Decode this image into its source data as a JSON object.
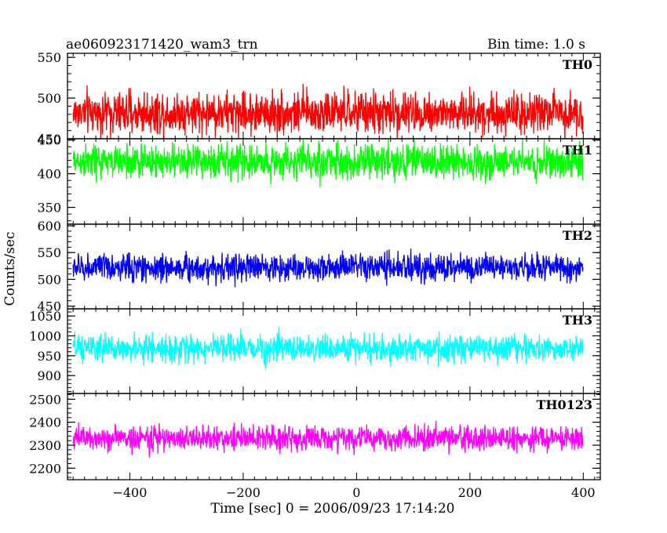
{
  "header": {
    "title": "ae060923171420_wam3_trn",
    "bin_time": "Bin time: 1.0 s"
  },
  "chart_data": {
    "type": "line",
    "xlabel": "Time [sec] 0 = 2006/09/23 17:14:20",
    "ylabel": "Counts/sec",
    "xlim": [
      -510,
      430
    ],
    "x_ticks": [
      -400,
      -200,
      0,
      200,
      400
    ],
    "x_tick_labels": [
      "−400",
      "−200",
      "0",
      "200",
      "400"
    ],
    "data_x_range": [
      -500,
      400
    ],
    "panels": [
      {
        "name": "TH0",
        "color": "#ff0000",
        "ylim": [
          450,
          555
        ],
        "ticks": [
          450,
          500,
          550
        ],
        "tick_labels": [
          "450",
          "500",
          "550"
        ],
        "center": 482,
        "noise": 26
      },
      {
        "name": "TH1",
        "color": "#00ff00",
        "ylim": [
          325,
          452
        ],
        "ticks": [
          350,
          400,
          450
        ],
        "tick_labels": [
          "350",
          "400",
          "450"
        ],
        "center": 418,
        "noise": 26
      },
      {
        "name": "TH2",
        "color": "#0000ff",
        "ylim": [
          445,
          603
        ],
        "ticks": [
          450,
          500,
          550,
          600
        ],
        "tick_labels": [
          "450",
          "500",
          "550",
          "600"
        ],
        "center": 522,
        "noise": 26
      },
      {
        "name": "TH3",
        "color": "#00ffff",
        "ylim": [
          855,
          1068
        ],
        "ticks": [
          900,
          950,
          1000,
          1050
        ],
        "tick_labels": [
          "900",
          "950",
          "1000",
          "1050"
        ],
        "center": 968,
        "noise": 34
      },
      {
        "name": "TH0123",
        "color": "#ff00ff",
        "ylim": [
          2150,
          2525
        ],
        "ticks": [
          2200,
          2300,
          2400,
          2500
        ],
        "tick_labels": [
          "2200",
          "2300",
          "2400",
          "2500"
        ],
        "center": 2330,
        "noise": 55
      }
    ]
  }
}
